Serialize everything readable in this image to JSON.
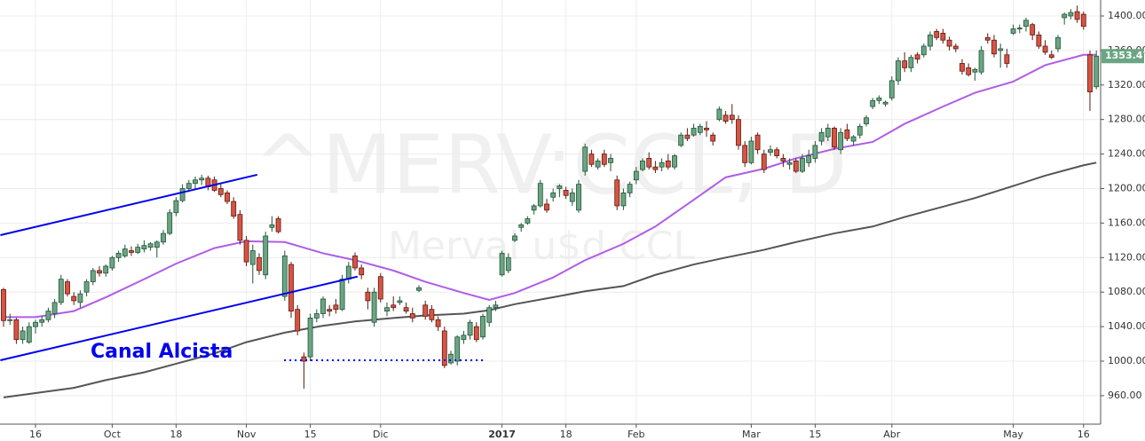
{
  "chart_data": {
    "type": "candlestick",
    "watermark": "^MERV:CCL, D",
    "subtitle": "Merval u$d CCL",
    "annotation": "Canal Alcista",
    "up_color": "#6ba583",
    "up_border": "#225437",
    "down_color": "#d75442",
    "down_border": "#5b1a13",
    "grid": true,
    "xlim": [
      -0.556,
      171.67
    ],
    "xticks": [
      {
        "value": 5,
        "label": "16"
      },
      {
        "value": 17,
        "label": "Oct"
      },
      {
        "value": 27,
        "label": "18"
      },
      {
        "value": 38,
        "label": "Nov"
      },
      {
        "value": 48,
        "label": "15"
      },
      {
        "value": 59,
        "label": "Dic"
      },
      {
        "value": 78,
        "label": "2017",
        "bold": true
      },
      {
        "value": 88,
        "label": "18"
      },
      {
        "value": 99,
        "label": "Feb"
      },
      {
        "value": 117,
        "label": "Mar"
      },
      {
        "value": 127,
        "label": "15"
      },
      {
        "value": 139,
        "label": "Abr"
      },
      {
        "value": 158,
        "label": "May"
      },
      {
        "value": 169,
        "label": "16"
      }
    ],
    "ylim": [
      927,
      1418.5
    ],
    "yticks": [
      {
        "value": 960,
        "label": "960.00"
      },
      {
        "value": 1000,
        "label": "1000.00"
      },
      {
        "value": 1040,
        "label": "1040.00"
      },
      {
        "value": 1080,
        "label": "1080.00"
      },
      {
        "value": 1120,
        "label": "1120.00"
      },
      {
        "value": 1160,
        "label": "1160.00"
      },
      {
        "value": 1200,
        "label": "1200.00"
      },
      {
        "value": 1240,
        "label": "1240.00"
      },
      {
        "value": 1280,
        "label": "1280.00"
      },
      {
        "value": 1320,
        "label": "1320.00"
      },
      {
        "value": 1360,
        "label": "1360.00"
      },
      {
        "value": 1400,
        "label": "1400.00"
      }
    ],
    "ohlc": [
      [
        1083,
        1085,
        1040,
        1047
      ],
      [
        1047,
        1055,
        1042,
        1048
      ],
      [
        1048,
        1050,
        1020,
        1025
      ],
      [
        1025,
        1040,
        1020,
        1035
      ],
      [
        1022,
        1045,
        1020,
        1040
      ],
      [
        1040,
        1048,
        1032,
        1045
      ],
      [
        1045,
        1052,
        1040,
        1048
      ],
      [
        1048,
        1062,
        1045,
        1058
      ],
      [
        1055,
        1072,
        1050,
        1068
      ],
      [
        1068,
        1100,
        1065,
        1095
      ],
      [
        1092,
        1095,
        1075,
        1078
      ],
      [
        1075,
        1080,
        1065,
        1070
      ],
      [
        1068,
        1082,
        1062,
        1078
      ],
      [
        1080,
        1095,
        1075,
        1092
      ],
      [
        1092,
        1108,
        1088,
        1105
      ],
      [
        1105,
        1110,
        1098,
        1102
      ],
      [
        1102,
        1112,
        1098,
        1110
      ],
      [
        1108,
        1122,
        1105,
        1120
      ],
      [
        1120,
        1128,
        1115,
        1125
      ],
      [
        1122,
        1135,
        1120,
        1130
      ],
      [
        1128,
        1133,
        1122,
        1126
      ],
      [
        1126,
        1136,
        1124,
        1132
      ],
      [
        1130,
        1140,
        1126,
        1134
      ],
      [
        1132,
        1138,
        1128,
        1136
      ],
      [
        1132,
        1140,
        1120,
        1138
      ],
      [
        1138,
        1152,
        1135,
        1148
      ],
      [
        1148,
        1176,
        1146,
        1172
      ],
      [
        1172,
        1190,
        1168,
        1186
      ],
      [
        1186,
        1205,
        1184,
        1200
      ],
      [
        1200,
        1210,
        1196,
        1206
      ],
      [
        1206,
        1214,
        1200,
        1210
      ],
      [
        1210,
        1216,
        1204,
        1212
      ],
      [
        1212,
        1215,
        1198,
        1202
      ],
      [
        1210,
        1214,
        1196,
        1198
      ],
      [
        1200,
        1206,
        1190,
        1193
      ],
      [
        1195,
        1198,
        1182,
        1185
      ],
      [
        1185,
        1190,
        1165,
        1168
      ],
      [
        1170,
        1175,
        1135,
        1140
      ],
      [
        1140,
        1145,
        1110,
        1115
      ],
      [
        1112,
        1135,
        1090,
        1128
      ],
      [
        1120,
        1125,
        1100,
        1105
      ],
      [
        1100,
        1150,
        1095,
        1145
      ],
      [
        1155,
        1168,
        1150,
        1158
      ],
      [
        1165,
        1168,
        1148,
        1150
      ],
      [
        1075,
        1128,
        1070,
        1122
      ],
      [
        1112,
        1115,
        1050,
        1058
      ],
      [
        1060,
        1065,
        1030,
        1035
      ],
      [
        1005,
        1010,
        968,
        1000
      ],
      [
        1005,
        1055,
        1000,
        1050
      ],
      [
        1050,
        1060,
        1045,
        1055
      ],
      [
        1055,
        1075,
        1050,
        1072
      ],
      [
        1060,
        1065,
        1052,
        1058
      ],
      [
        1065,
        1072,
        1055,
        1060
      ],
      [
        1060,
        1100,
        1058,
        1095
      ],
      [
        1095,
        1115,
        1090,
        1110
      ],
      [
        1122,
        1126,
        1105,
        1108
      ],
      [
        1108,
        1112,
        1095,
        1100
      ],
      [
        1080,
        1085,
        1060,
        1070
      ],
      [
        1045,
        1085,
        1040,
        1080
      ],
      [
        1098,
        1102,
        1068,
        1072
      ],
      [
        1058,
        1068,
        1052,
        1062
      ],
      [
        1065,
        1075,
        1058,
        1062
      ],
      [
        1068,
        1075,
        1065,
        1070
      ],
      [
        1062,
        1068,
        1055,
        1058
      ],
      [
        1055,
        1062,
        1045,
        1050
      ],
      [
        1082,
        1088,
        1080,
        1085
      ],
      [
        1065,
        1070,
        1048,
        1052
      ],
      [
        1060,
        1065,
        1045,
        1048
      ],
      [
        1048,
        1052,
        1035,
        1040
      ],
      [
        1035,
        1040,
        992,
        995
      ],
      [
        998,
        1012,
        996,
        1008
      ],
      [
        1000,
        1030,
        995,
        1028
      ],
      [
        1025,
        1035,
        1020,
        1030
      ],
      [
        1030,
        1048,
        1025,
        1045
      ],
      [
        1040,
        1045,
        1022,
        1025
      ],
      [
        1028,
        1055,
        1025,
        1052
      ],
      [
        1045,
        1065,
        1040,
        1062
      ],
      [
        1062,
        1070,
        1058,
        1065
      ],
      [
        1100,
        1128,
        1098,
        1125
      ],
      [
        1105,
        1125,
        1102,
        1120
      ],
      [
        1140,
        1148,
        1138,
        1145
      ],
      [
        1155,
        1160,
        1150,
        1158
      ],
      [
        1160,
        1168,
        1158,
        1165
      ],
      [
        1175,
        1182,
        1170,
        1180
      ],
      [
        1180,
        1210,
        1178,
        1206
      ],
      [
        1182,
        1188,
        1172,
        1175
      ],
      [
        1190,
        1200,
        1185,
        1195
      ],
      [
        1200,
        1205,
        1190,
        1203
      ],
      [
        1198,
        1202,
        1188,
        1192
      ],
      [
        1185,
        1200,
        1180,
        1195
      ],
      [
        1175,
        1210,
        1172,
        1205
      ],
      [
        1220,
        1252,
        1215,
        1248
      ],
      [
        1240,
        1245,
        1225,
        1228
      ],
      [
        1225,
        1235,
        1222,
        1232
      ],
      [
        1240,
        1245,
        1225,
        1228
      ],
      [
        1230,
        1240,
        1220,
        1235
      ],
      [
        1210,
        1215,
        1175,
        1180
      ],
      [
        1180,
        1200,
        1175,
        1195
      ],
      [
        1195,
        1208,
        1190,
        1205
      ],
      [
        1210,
        1225,
        1205,
        1220
      ],
      [
        1222,
        1235,
        1220,
        1232
      ],
      [
        1235,
        1242,
        1222,
        1225
      ],
      [
        1225,
        1232,
        1218,
        1222
      ],
      [
        1225,
        1235,
        1220,
        1230
      ],
      [
        1232,
        1240,
        1222,
        1225
      ],
      [
        1225,
        1240,
        1222,
        1238
      ],
      [
        1250,
        1265,
        1248,
        1262
      ],
      [
        1262,
        1270,
        1255,
        1258
      ],
      [
        1262,
        1275,
        1260,
        1270
      ],
      [
        1265,
        1275,
        1262,
        1272
      ],
      [
        1270,
        1278,
        1260,
        1268
      ],
      [
        1262,
        1265,
        1250,
        1255
      ],
      [
        1280,
        1295,
        1278,
        1292
      ],
      [
        1285,
        1290,
        1275,
        1278
      ],
      [
        1285,
        1298,
        1275,
        1280
      ],
      [
        1280,
        1285,
        1245,
        1250
      ],
      [
        1250,
        1255,
        1225,
        1230
      ],
      [
        1230,
        1260,
        1228,
        1255
      ],
      [
        1262,
        1265,
        1240,
        1245
      ],
      [
        1240,
        1245,
        1218,
        1222
      ],
      [
        1242,
        1250,
        1238,
        1245
      ],
      [
        1245,
        1248,
        1235,
        1238
      ],
      [
        1235,
        1240,
        1225,
        1232
      ],
      [
        1228,
        1235,
        1222,
        1230
      ],
      [
        1232,
        1235,
        1218,
        1220
      ],
      [
        1220,
        1240,
        1218,
        1235
      ],
      [
        1230,
        1245,
        1225,
        1238
      ],
      [
        1235,
        1255,
        1230,
        1250
      ],
      [
        1255,
        1270,
        1250,
        1265
      ],
      [
        1260,
        1275,
        1255,
        1270
      ],
      [
        1270,
        1272,
        1245,
        1248
      ],
      [
        1245,
        1270,
        1240,
        1265
      ],
      [
        1268,
        1275,
        1255,
        1258
      ],
      [
        1255,
        1262,
        1250,
        1260
      ],
      [
        1262,
        1275,
        1258,
        1272
      ],
      [
        1275,
        1285,
        1272,
        1282
      ],
      [
        1295,
        1305,
        1292,
        1302
      ],
      [
        1302,
        1308,
        1298,
        1305
      ],
      [
        1298,
        1302,
        1295,
        1300
      ],
      [
        1305,
        1330,
        1302,
        1325
      ],
      [
        1325,
        1352,
        1320,
        1348
      ],
      [
        1348,
        1358,
        1335,
        1340
      ],
      [
        1340,
        1355,
        1335,
        1352
      ],
      [
        1355,
        1358,
        1345,
        1350
      ],
      [
        1355,
        1368,
        1352,
        1365
      ],
      [
        1365,
        1382,
        1360,
        1378
      ],
      [
        1382,
        1385,
        1372,
        1375
      ],
      [
        1380,
        1385,
        1368,
        1372
      ],
      [
        1372,
        1376,
        1360,
        1365
      ],
      [
        1365,
        1368,
        1358,
        1362
      ],
      [
        1345,
        1350,
        1332,
        1336
      ],
      [
        1340,
        1345,
        1330,
        1332
      ],
      [
        1335,
        1340,
        1325,
        1338
      ],
      [
        1335,
        1365,
        1332,
        1360
      ],
      [
        1375,
        1380,
        1368,
        1372
      ],
      [
        1372,
        1378,
        1352,
        1356
      ],
      [
        1360,
        1368,
        1340,
        1362
      ],
      [
        1355,
        1362,
        1340,
        1345
      ],
      [
        1380,
        1390,
        1378,
        1385
      ],
      [
        1385,
        1390,
        1380,
        1386
      ],
      [
        1388,
        1398,
        1382,
        1395
      ],
      [
        1390,
        1392,
        1372,
        1378
      ],
      [
        1378,
        1382,
        1362,
        1365
      ],
      [
        1365,
        1372,
        1355,
        1358
      ],
      [
        1355,
        1360,
        1350,
        1352
      ],
      [
        1362,
        1378,
        1358,
        1375
      ],
      [
        1398,
        1404,
        1390,
        1402
      ],
      [
        1400,
        1408,
        1396,
        1404
      ],
      [
        1405,
        1412,
        1392,
        1396
      ],
      [
        1402,
        1405,
        1384,
        1388
      ],
      [
        1355,
        1360,
        1290,
        1312
      ],
      [
        1318,
        1360,
        1315,
        1353.47
      ]
    ],
    "lines": [
      {
        "color": "#b05ce6",
        "x": [
          0,
          5,
          11,
          16,
          22,
          27,
          33,
          38,
          44,
          50,
          55,
          61,
          66,
          72,
          76,
          80,
          86,
          91,
          97,
          102,
          108,
          113,
          119,
          124,
          130,
          136,
          141,
          147,
          152,
          158,
          163,
          169,
          171
        ],
        "values": [
          1051,
          1051,
          1058,
          1074,
          1095,
          1113,
          1131,
          1139,
          1138,
          1125,
          1117,
          1105,
          1092,
          1079,
          1071,
          1079,
          1097,
          1117,
          1136,
          1156,
          1187,
          1213,
          1223,
          1235,
          1246,
          1254,
          1275,
          1295,
          1311,
          1324,
          1343,
          1355,
          1355
        ]
      },
      {
        "color": "#555555",
        "x": [
          0,
          5,
          11,
          16,
          22,
          27,
          33,
          38,
          44,
          50,
          55,
          61,
          66,
          72,
          76,
          80,
          86,
          91,
          97,
          102,
          108,
          113,
          119,
          124,
          130,
          136,
          141,
          147,
          152,
          158,
          163,
          169,
          171
        ],
        "values": [
          958,
          963,
          969,
          978,
          987,
          997,
          1009,
          1022,
          1033,
          1041,
          1046,
          1050,
          1053,
          1055,
          1059,
          1066,
          1074,
          1081,
          1087,
          1100,
          1112,
          1120,
          1129,
          1138,
          1148,
          1156,
          1167,
          1179,
          1189,
          1203,
          1215,
          1227,
          1230
        ]
      }
    ],
    "trend_lines": [
      {
        "color": "#0000ee",
        "x": [
          -0.5,
          39.7
        ],
        "values": [
          1146,
          1216
        ]
      },
      {
        "color": "#0000ee",
        "x": [
          -0.5,
          55.4
        ],
        "values": [
          1001,
          1098
        ]
      },
      {
        "color": "#0000ee",
        "dotted": true,
        "x": [
          43.9,
          75.5
        ],
        "values": [
          1001,
          1001
        ]
      }
    ]
  }
}
